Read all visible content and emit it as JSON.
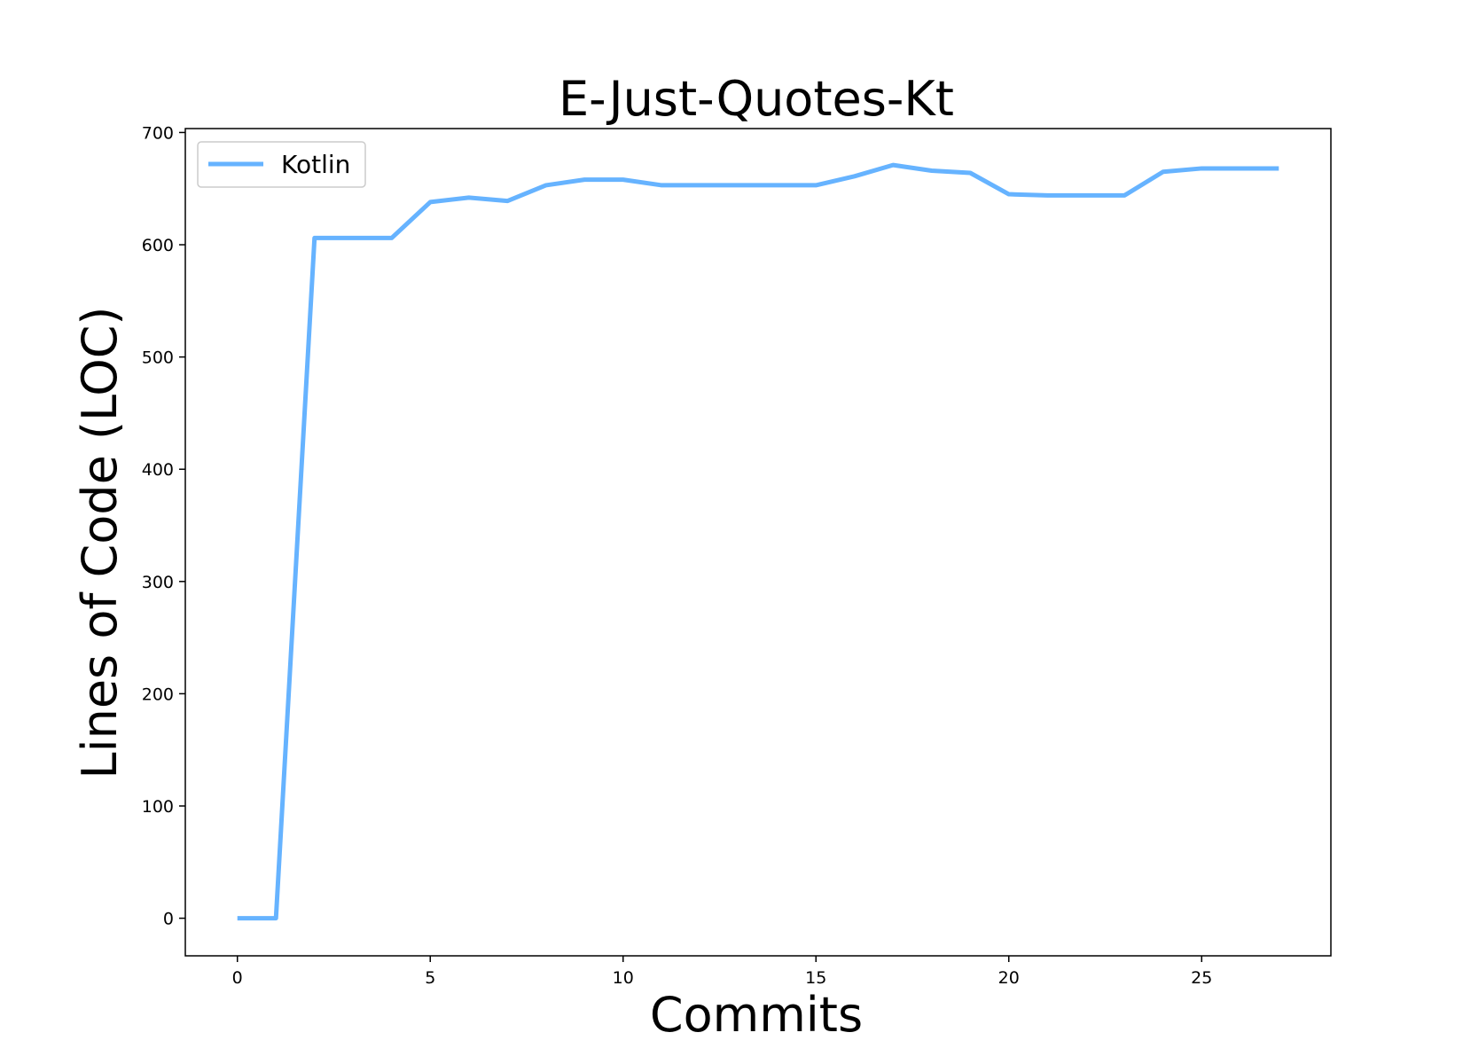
{
  "chart_data": {
    "type": "line",
    "title": "E-Just-Quotes-Kt",
    "xlabel": "Commits",
    "ylabel": "Lines of Code (LOC)",
    "xlim": [
      -1.35,
      28.35
    ],
    "ylim": [
      -33.5,
      703.5
    ],
    "xticks": [
      0,
      5,
      10,
      15,
      20,
      25
    ],
    "yticks": [
      0,
      100,
      200,
      300,
      400,
      500,
      600,
      700
    ],
    "xtick_labels": [
      "0",
      "5",
      "10",
      "15",
      "20",
      "25"
    ],
    "ytick_labels": [
      "0",
      "100",
      "200",
      "300",
      "400",
      "500",
      "600",
      "700"
    ],
    "grid": false,
    "legend": {
      "placement": "top-left"
    },
    "series": [
      {
        "name": "Kotlin",
        "color": "#66b3ff",
        "x": [
          0,
          1,
          2,
          3,
          4,
          5,
          6,
          7,
          8,
          9,
          10,
          11,
          12,
          13,
          14,
          15,
          16,
          17,
          18,
          19,
          20,
          21,
          22,
          23,
          24,
          25,
          26,
          27
        ],
        "y": [
          0,
          0,
          606,
          606,
          606,
          638,
          642,
          639,
          653,
          658,
          658,
          653,
          653,
          653,
          653,
          653,
          661,
          671,
          666,
          664,
          645,
          644,
          644,
          644,
          665,
          668,
          668,
          668
        ]
      }
    ]
  }
}
